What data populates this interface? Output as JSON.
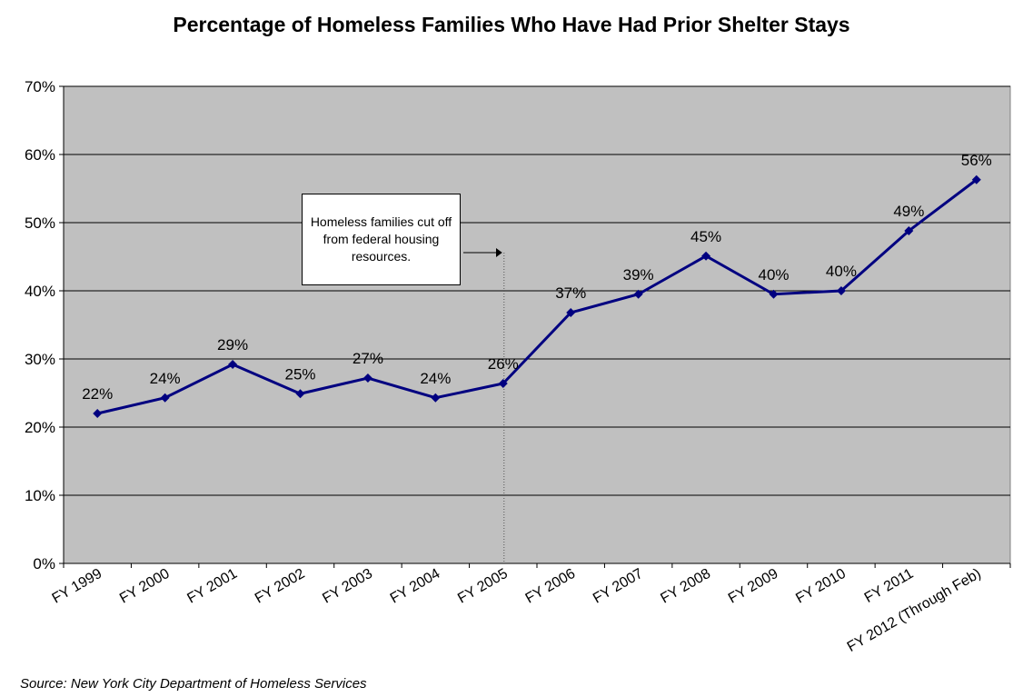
{
  "chart_data": {
    "type": "line",
    "title": "Percentage of Homeless Families Who Have Had Prior Shelter Stays",
    "xlabel": "",
    "ylabel": "",
    "categories": [
      "FY 1999",
      "FY 2000",
      "FY 2001",
      "FY 2002",
      "FY 2003",
      "FY 2004",
      "FY 2005",
      "FY 2006",
      "FY 2007",
      "FY 2008",
      "FY 2009",
      "FY 2010",
      "FY 2011",
      "FY 2012 (Through Feb)"
    ],
    "values": [
      22.0,
      24.3,
      29.2,
      24.9,
      27.2,
      24.3,
      26.4,
      36.8,
      39.5,
      45.1,
      39.5,
      40.0,
      48.8,
      56.3
    ],
    "data_labels": [
      "22%",
      "24%",
      "29%",
      "25%",
      "27%",
      "24%",
      "26%",
      "37%",
      "39%",
      "45%",
      "40%",
      "40%",
      "49%",
      "56%"
    ],
    "ylim": [
      0,
      70
    ],
    "yticks": [
      "0%",
      "10%",
      "20%",
      "30%",
      "40%",
      "50%",
      "60%",
      "70%"
    ],
    "grid": true,
    "plot_background": "#C0C0C0",
    "line_color": "#000080",
    "annotation": {
      "text": "Homeless  families cut off from federal housing resources.",
      "points_to": "FY 2005"
    },
    "source": "Source: New York City Department of Homeless Services"
  }
}
